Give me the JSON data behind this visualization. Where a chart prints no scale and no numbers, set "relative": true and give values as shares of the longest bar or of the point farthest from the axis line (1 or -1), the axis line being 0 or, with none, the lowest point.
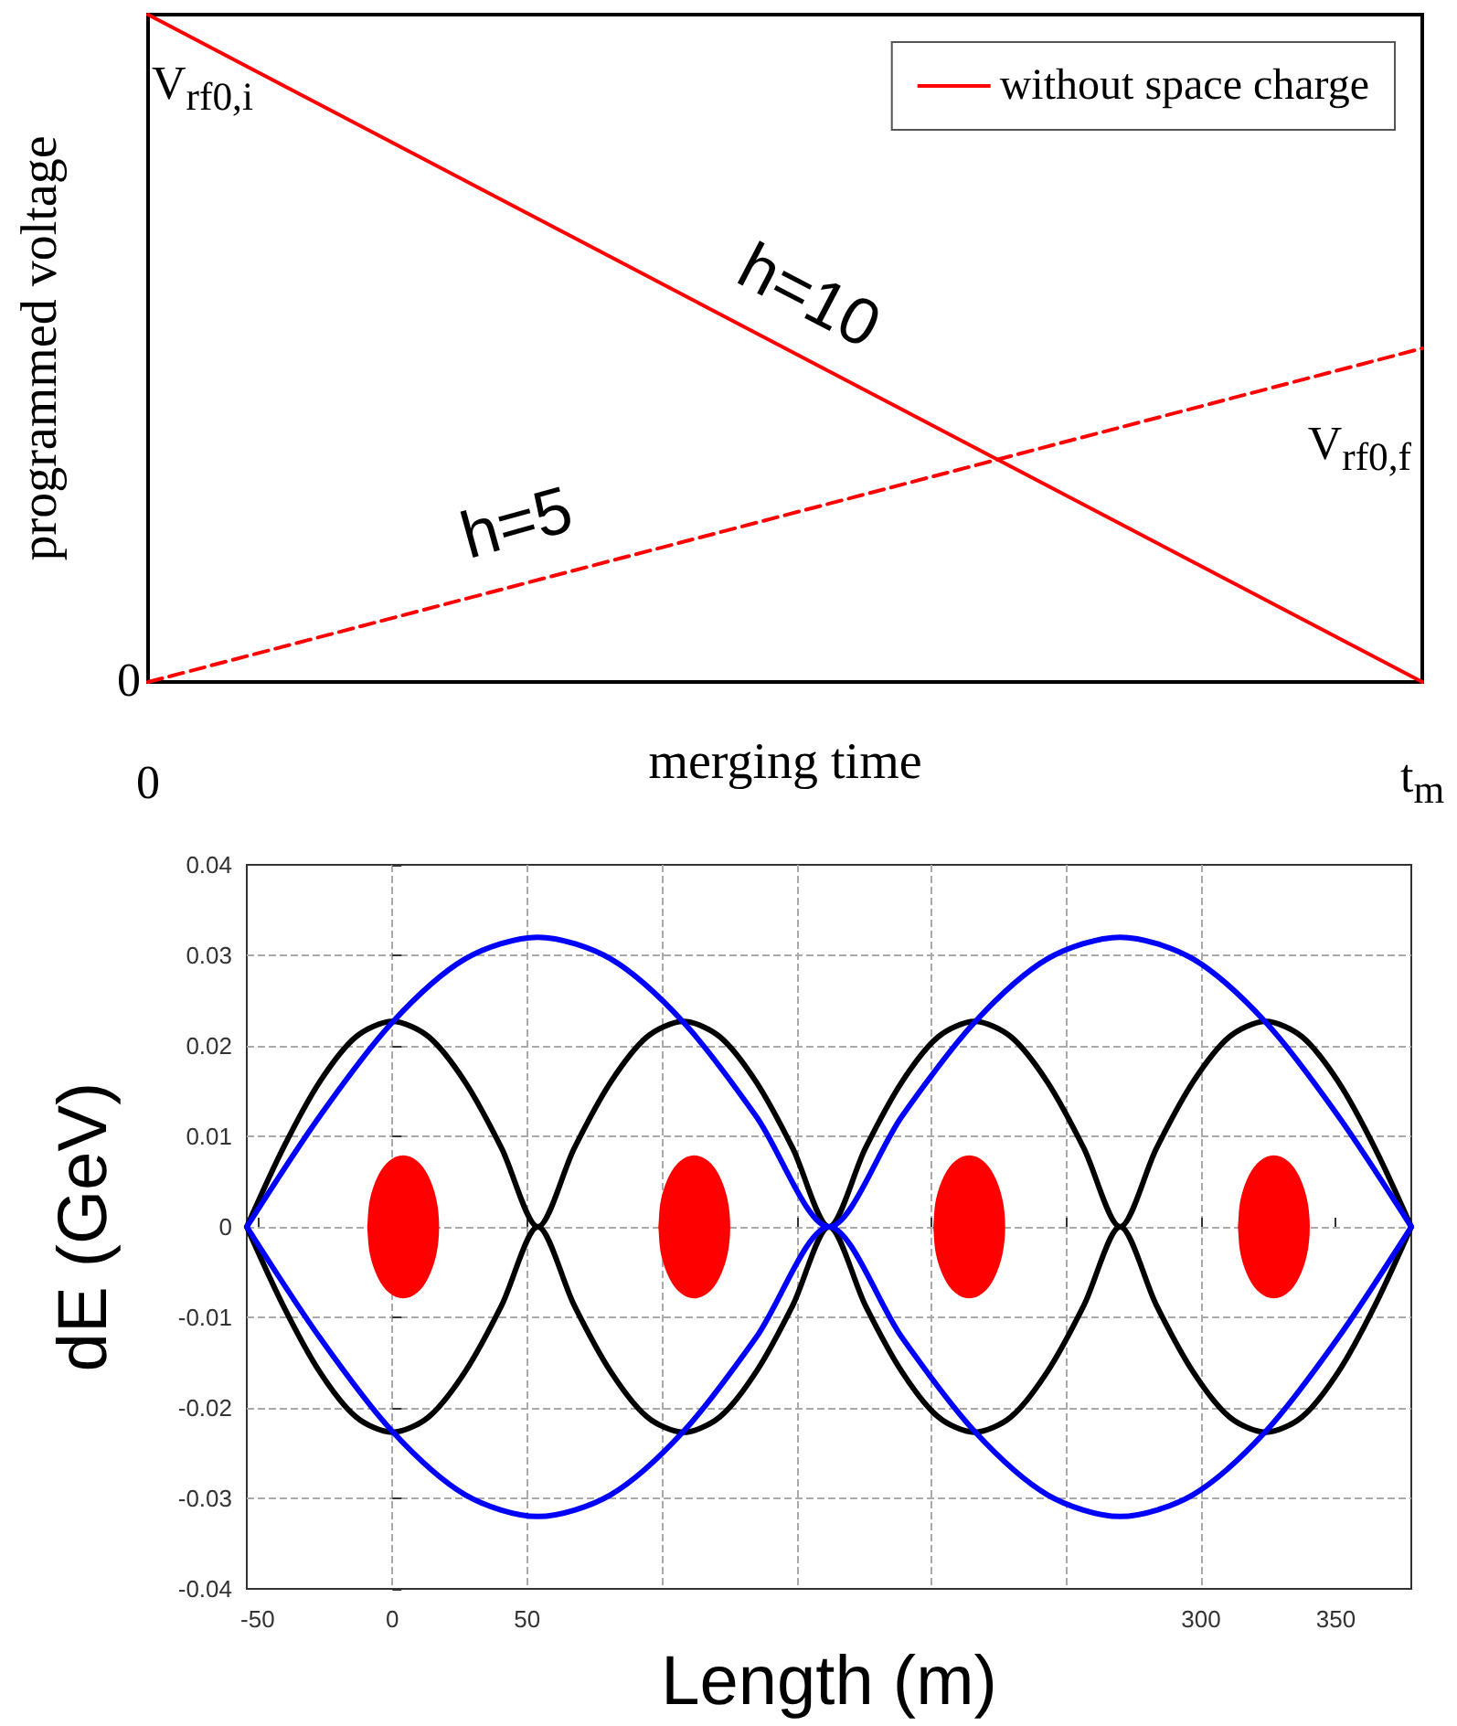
{
  "chart_data": [
    {
      "type": "line",
      "relative": true,
      "xlabel": "merging time",
      "ylabel": "programmed voltage",
      "categories": [
        "0",
        "t$_{m}$"
      ],
      "legend": "top right",
      "grid": false,
      "marker": "none",
      "series": [
        {
          "name": "without space charge",
          "color": "#ff0000",
          "values": [
            1,
            0
          ],
          "line_style": "solid"
        },
        {
          "color": "#ff0000",
          "values": [
            0,
            0.5
          ],
          "line_style": "dashed"
        }
      ],
      "annotations": [
        "h=10",
        "h=5",
        {
          "text": "V$_{rf0,f}$",
          "x": "t$_{m}$",
          "y": 0.5
        },
        {
          "text": "V$_{rf0,i}$",
          "x": "0",
          "y": 1
        },
        {
          "text": "0",
          "x": "0",
          "y": 0
        }
      ]
    },
    {
      "type": "line",
      "xlabel": "Length (m)",
      "ylabel": "dE (GeV)",
      "xlim": [
        -54,
        378
      ],
      "xticks": [
        -50,
        0,
        50,
        {
          "value": 100,
          "label": null
        },
        {
          "value": 150,
          "label": null
        },
        {
          "value": 200,
          "label": null
        },
        {
          "value": 250,
          "label": null
        },
        300,
        350
      ],
      "ylim": [
        -0.04,
        0.04
      ],
      "yticks": [
        -0.04,
        -0.03,
        -0.02,
        -0.01,
        0,
        0.01,
        0.02,
        0.03,
        0.04
      ],
      "grid": true,
      "marker": "none",
      "line_style": "solid",
      "series": [
        {
          "color": "#000000",
          "x": [
            -54,
            -40.5,
            -27,
            -13.5,
            0,
            13.5,
            27,
            40.5,
            54,
            67.5,
            81,
            94.5,
            108,
            121.5,
            135,
            148.5,
            162,
            175.5,
            189,
            202.5,
            216,
            229.5,
            243,
            256.5,
            270,
            283.5,
            297,
            310.5,
            324,
            337.5,
            351,
            364.5,
            378
          ],
          "values": [
            0,
            0.0087,
            0.016,
            0.021,
            0.0227,
            0.021,
            0.016,
            0.0087,
            0,
            0.0087,
            0.016,
            0.021,
            0.0227,
            0.021,
            0.016,
            0.0087,
            0,
            0.0087,
            0.016,
            0.021,
            0.0227,
            0.021,
            0.016,
            0.0087,
            0,
            0.0087,
            0.016,
            0.021,
            0.0227,
            0.021,
            0.016,
            0.0087,
            0
          ]
        },
        {
          "color": "#000000",
          "x": [
            -54,
            -40.5,
            -27,
            -13.5,
            0,
            13.5,
            27,
            40.5,
            54,
            67.5,
            81,
            94.5,
            108,
            121.5,
            135,
            148.5,
            162,
            175.5,
            189,
            202.5,
            216,
            229.5,
            243,
            256.5,
            270,
            283.5,
            297,
            310.5,
            324,
            337.5,
            351,
            364.5,
            378
          ],
          "values": [
            0,
            -0.0087,
            -0.016,
            -0.021,
            -0.0227,
            -0.021,
            -0.016,
            -0.0087,
            0,
            -0.0087,
            -0.016,
            -0.021,
            -0.0227,
            -0.021,
            -0.016,
            -0.0087,
            0,
            -0.0087,
            -0.016,
            -0.021,
            -0.0227,
            -0.021,
            -0.016,
            -0.0087,
            0,
            -0.0087,
            -0.016,
            -0.021,
            -0.0227,
            -0.021,
            -0.016,
            -0.0087,
            0
          ]
        },
        {
          "color": "#0000ff",
          "x": [
            -54,
            -27,
            0,
            27,
            54,
            81,
            108,
            135,
            162,
            189,
            216,
            243,
            270,
            297,
            324,
            351,
            378
          ],
          "values": [
            0,
            0.0122,
            0.0226,
            0.0296,
            0.032,
            0.0296,
            0.0226,
            0.0122,
            0,
            0.0122,
            0.0226,
            0.0296,
            0.032,
            0.0296,
            0.0226,
            0.0122,
            0
          ]
        },
        {
          "color": "#0000ff",
          "x": [
            -54,
            -27,
            0,
            27,
            54,
            81,
            108,
            135,
            162,
            189,
            216,
            243,
            270,
            297,
            324,
            351,
            378
          ],
          "values": [
            0,
            -0.0122,
            -0.0226,
            -0.0296,
            -0.032,
            -0.0296,
            -0.0226,
            -0.0122,
            0,
            -0.0122,
            -0.0226,
            -0.0296,
            -0.032,
            -0.0296,
            -0.0226,
            -0.0122,
            0
          ]
        },
        {
          "type": "area",
          "color": "#ff0000",
          "x": [
            -9,
            -8,
            -5,
            -1,
            4,
            9,
            13,
            16,
            17,
            16,
            13,
            9,
            4,
            -1,
            -5,
            -8,
            -9
          ],
          "values": [
            0,
            0.003,
            0.0056,
            0.0072,
            0.0078,
            0.0072,
            0.0056,
            0.003,
            0,
            -0.003,
            -0.0056,
            -0.0072,
            -0.0078,
            -0.0072,
            -0.0056,
            -0.003,
            0
          ]
        },
        {
          "type": "area",
          "color": "#ff0000",
          "x": [
            99,
            100,
            103,
            107,
            112,
            117,
            121,
            124,
            125,
            124,
            121,
            117,
            112,
            107,
            103,
            100,
            99
          ],
          "values": [
            0,
            0.003,
            0.0056,
            0.0072,
            0.0078,
            0.0072,
            0.0056,
            0.003,
            0,
            -0.003,
            -0.0056,
            -0.0072,
            -0.0078,
            -0.0072,
            -0.0056,
            -0.003,
            0
          ]
        },
        {
          "type": "area",
          "color": "#ff0000",
          "x": [
            201,
            202,
            205,
            209,
            214,
            219,
            223,
            226,
            227,
            226,
            223,
            219,
            214,
            209,
            205,
            202,
            201
          ],
          "values": [
            0,
            0.003,
            0.0056,
            0.0072,
            0.0078,
            0.0072,
            0.0056,
            0.003,
            0,
            -0.003,
            -0.0056,
            -0.0072,
            -0.0078,
            -0.0072,
            -0.0056,
            -0.003,
            0
          ]
        },
        {
          "type": "area",
          "color": "#ff0000",
          "x": [
            314,
            315,
            318,
            322,
            327,
            332,
            336,
            339,
            340,
            339,
            336,
            332,
            327,
            322,
            318,
            315,
            314
          ],
          "values": [
            0,
            0.003,
            0.0056,
            0.0072,
            0.0078,
            0.0072,
            0.0056,
            0.003,
            0,
            -0.003,
            -0.0056,
            -0.0072,
            -0.0078,
            -0.0072,
            -0.0056,
            -0.003,
            0
          ]
        }
      ]
    }
  ]
}
